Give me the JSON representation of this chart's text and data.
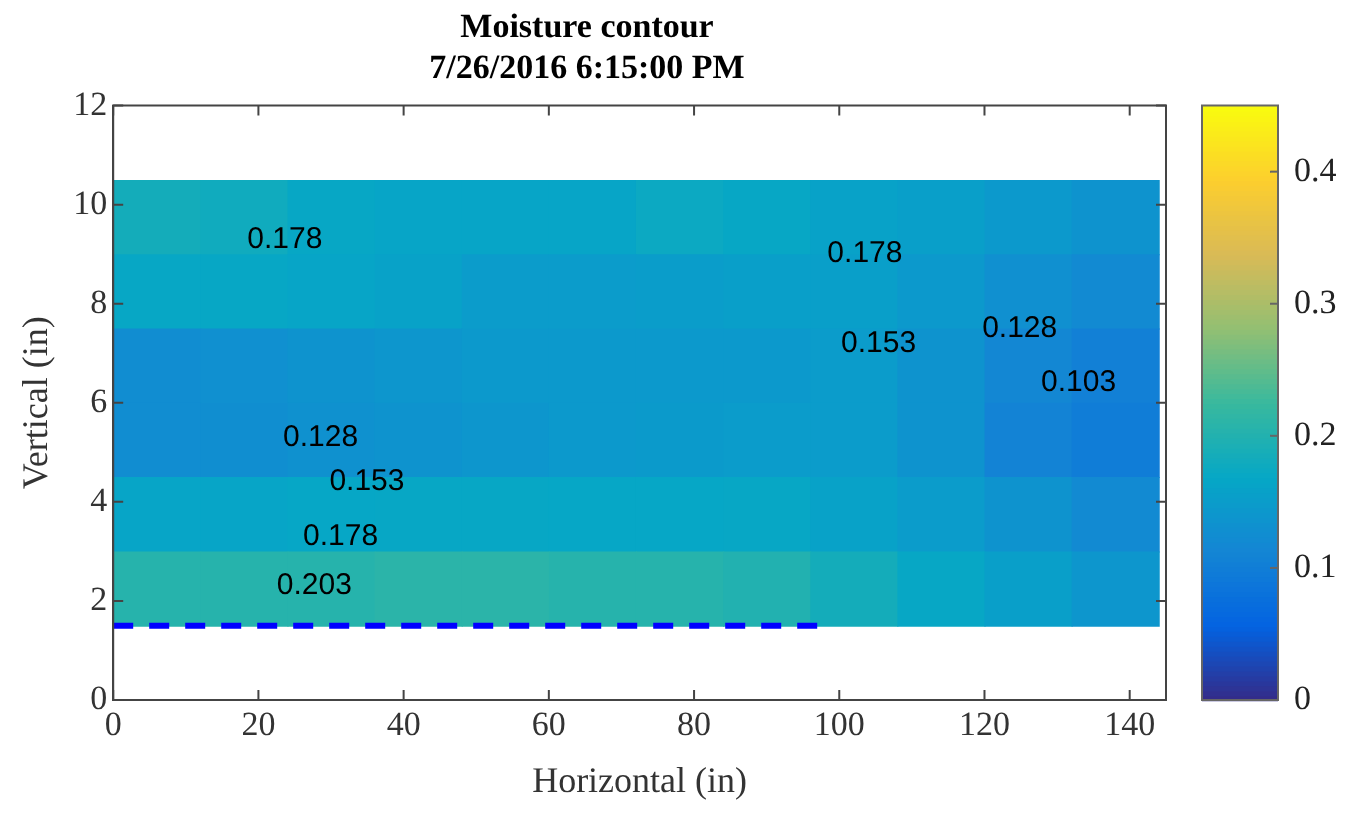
{
  "chart_data": {
    "type": "heatmap",
    "title": "Moisture contour",
    "subtitle": "7/26/2016 6:15:00 PM",
    "xlabel": "Horizontal (in)",
    "ylabel": "Vertical (in)",
    "x": [
      6,
      18,
      30,
      42,
      54,
      66,
      78,
      90,
      102,
      114,
      126,
      138
    ],
    "y": [
      9.75,
      8.25,
      6.75,
      5.25,
      3.75,
      2.25
    ],
    "cells": [
      [
        0.185,
        0.18,
        0.17,
        0.165,
        0.165,
        0.165,
        0.175,
        0.17,
        0.16,
        0.155,
        0.145,
        0.135
      ],
      [
        0.17,
        0.17,
        0.165,
        0.16,
        0.15,
        0.15,
        0.152,
        0.155,
        0.155,
        0.145,
        0.13,
        0.12
      ],
      [
        0.125,
        0.13,
        0.135,
        0.14,
        0.145,
        0.145,
        0.145,
        0.145,
        0.15,
        0.135,
        0.115,
        0.105
      ],
      [
        0.125,
        0.128,
        0.132,
        0.135,
        0.14,
        0.145,
        0.148,
        0.15,
        0.15,
        0.135,
        0.11,
        0.1
      ],
      [
        0.165,
        0.165,
        0.168,
        0.17,
        0.17,
        0.168,
        0.168,
        0.17,
        0.16,
        0.15,
        0.135,
        0.12
      ],
      [
        0.205,
        0.205,
        0.205,
        0.21,
        0.21,
        0.205,
        0.205,
        0.2,
        0.185,
        0.17,
        0.155,
        0.14
      ]
    ],
    "clim": [
      0,
      0.45
    ],
    "cticks": [
      0,
      0.1,
      0.2,
      0.3,
      0.4
    ],
    "xlim": [
      0,
      145
    ],
    "xticks": [
      0,
      20,
      40,
      60,
      80,
      100,
      120,
      140
    ],
    "ylim": [
      0,
      12
    ],
    "yticks": [
      0,
      2,
      4,
      6,
      8,
      10,
      12
    ],
    "series": [
      {
        "type": "line",
        "x": [
          0,
          97
        ],
        "values": [
          1.5,
          1.5
        ],
        "color": "#0000ff",
        "line_style": "dashed"
      }
    ],
    "annotations": [
      "0.178",
      "0.178",
      "0.153",
      "0.128",
      "0.103",
      "0.128",
      "0.153",
      "0.178",
      "0.203"
    ]
  }
}
